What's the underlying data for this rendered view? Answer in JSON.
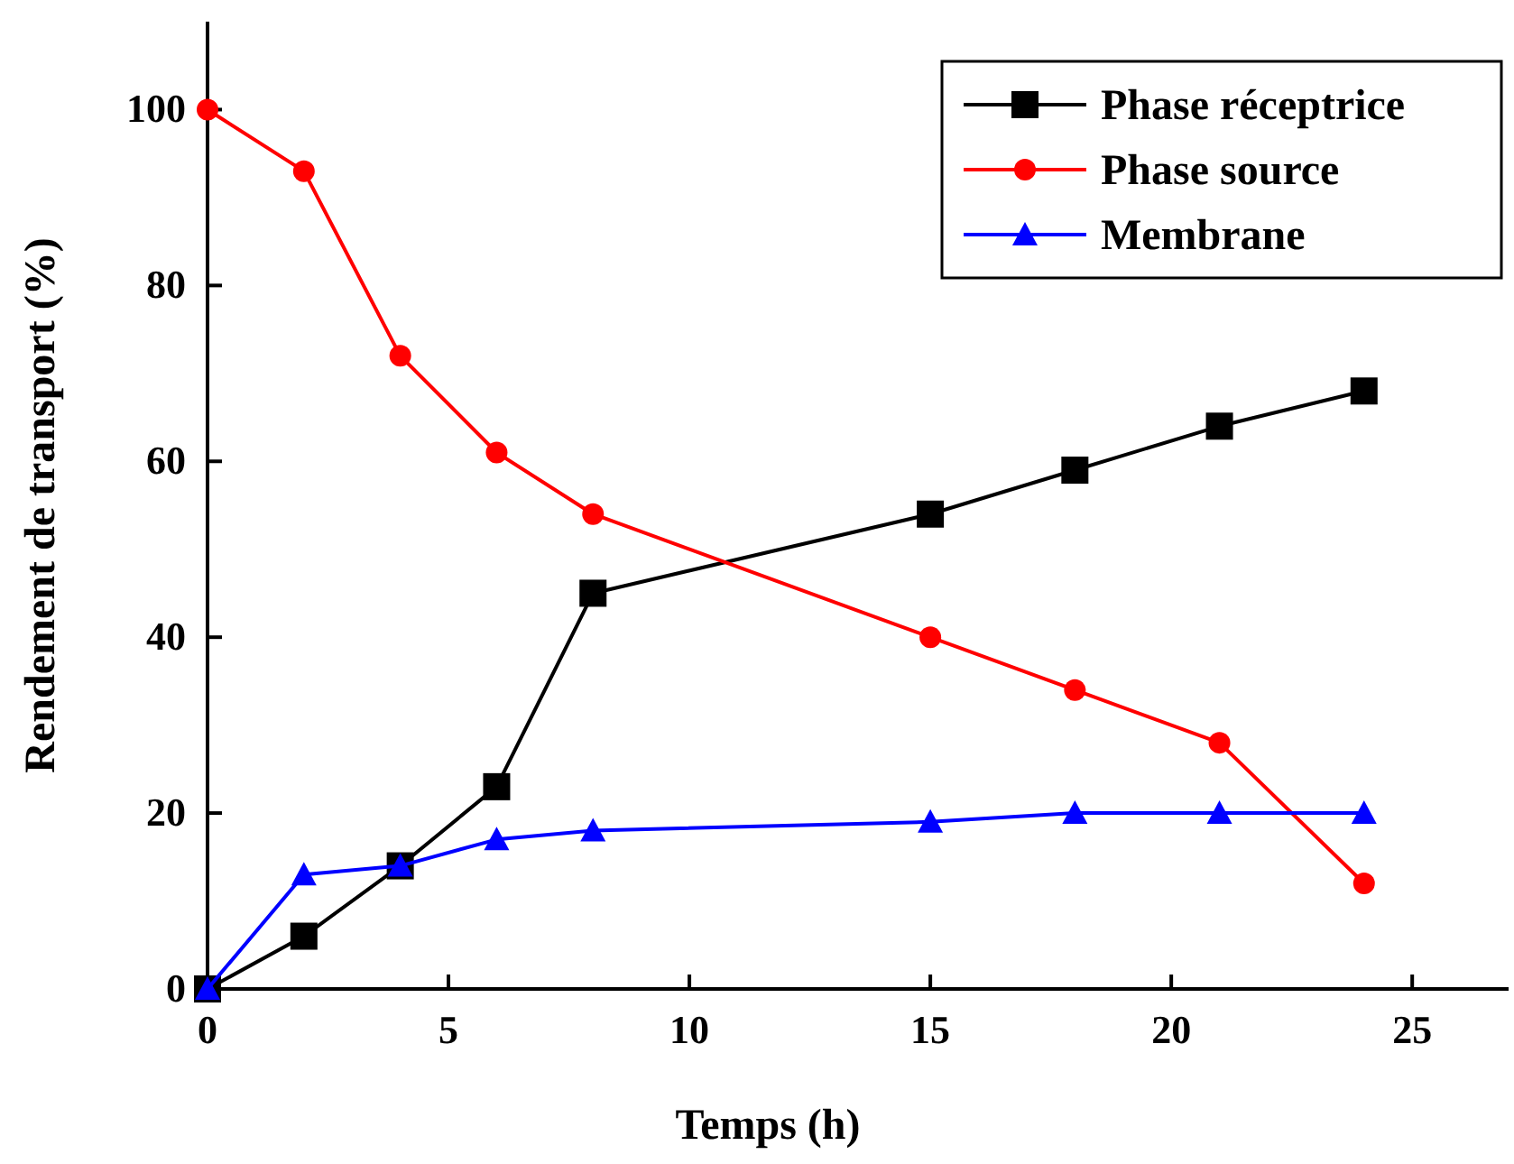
{
  "chart_data": {
    "type": "line",
    "xlabel": "Temps (h)",
    "ylabel": "Rendement de transport (%)",
    "xlim": [
      0,
      27
    ],
    "ylim": [
      0,
      110
    ],
    "xticks": [
      0,
      5,
      10,
      15,
      20,
      25
    ],
    "yticks": [
      0,
      20,
      40,
      60,
      80,
      100
    ],
    "legend": "top right",
    "grid": false,
    "line_style": "solid",
    "series": [
      {
        "name": "Phase réceptrice",
        "color": "#000000",
        "marker": "square",
        "x": [
          0,
          2,
          4,
          6,
          8,
          15,
          18,
          21,
          24
        ],
        "values": [
          0,
          6,
          14,
          23,
          45,
          54,
          59,
          64,
          68
        ]
      },
      {
        "name": "Phase source",
        "color": "#ff0000",
        "marker": "circle",
        "x": [
          0,
          2,
          4,
          6,
          8,
          15,
          18,
          21,
          24
        ],
        "values": [
          100,
          93,
          72,
          61,
          54,
          40,
          34,
          28,
          12
        ]
      },
      {
        "name": "Membrane",
        "color": "#0000ff",
        "marker": "triangle",
        "x": [
          0,
          2,
          4,
          6,
          8,
          15,
          18,
          21,
          24
        ],
        "values": [
          0,
          13,
          14,
          17,
          18,
          19,
          20,
          20,
          20
        ]
      }
    ]
  }
}
